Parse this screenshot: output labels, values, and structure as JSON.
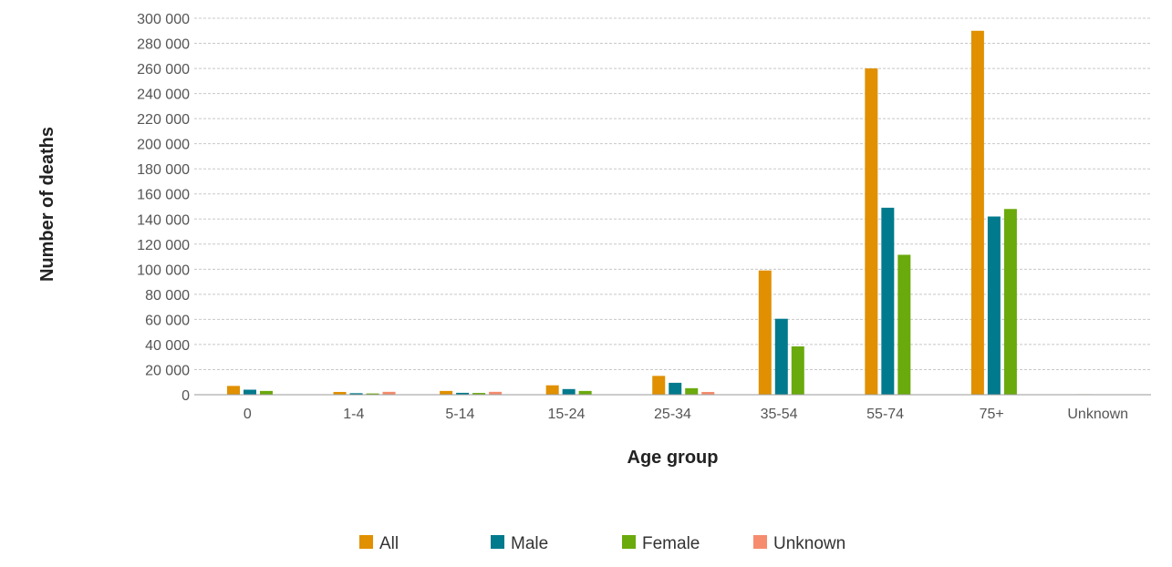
{
  "chart_data": {
    "type": "bar",
    "title": "",
    "xlabel": "Age group",
    "ylabel": "Number of deaths",
    "categories": [
      "0",
      "1-4",
      "5-14",
      "15-24",
      "25-34",
      "35-54",
      "55-74",
      "75+",
      "Unknown"
    ],
    "ylim": [
      0,
      300000
    ],
    "yticks": [
      0,
      20000,
      40000,
      60000,
      80000,
      100000,
      120000,
      140000,
      160000,
      180000,
      200000,
      220000,
      240000,
      260000,
      280000,
      300000
    ],
    "ytick_labels": [
      "0",
      "20 000",
      "40 000",
      "60 000",
      "80 000",
      "100 000",
      "120 000",
      "140 000",
      "160 000",
      "180 000",
      "200 000",
      "220 000",
      "240 000",
      "260 000",
      "280 000",
      "300 000"
    ],
    "grid": true,
    "legend_position": "bottom",
    "series": [
      {
        "name": "All",
        "color": "#e09000",
        "values": [
          7000,
          2200,
          3000,
          7500,
          15000,
          99000,
          260000,
          290000,
          400
        ]
      },
      {
        "name": "Male",
        "color": "#007a8c",
        "values": [
          4000,
          1200,
          1500,
          4500,
          9500,
          60500,
          149000,
          142000,
          300
        ]
      },
      {
        "name": "Female",
        "color": "#6aaa0c",
        "values": [
          3000,
          1000,
          1400,
          3000,
          5200,
          38500,
          111500,
          148000,
          100
        ]
      },
      {
        "name": "Unknown",
        "color": "#f58c6e",
        "values": [
          0,
          2300,
          2300,
          0,
          2200,
          0,
          0,
          0,
          0
        ]
      }
    ]
  }
}
